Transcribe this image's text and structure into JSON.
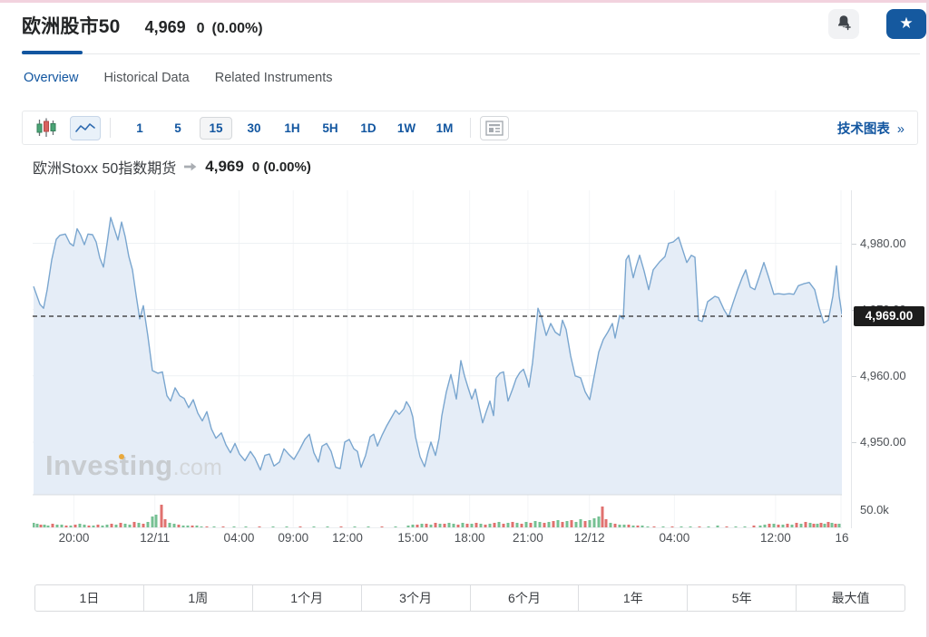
{
  "header": {
    "title": "欧洲股市50",
    "price": "4,969",
    "change": "0",
    "change_pct": "(0.00%)"
  },
  "tabs": [
    {
      "label": "Overview",
      "active": true
    },
    {
      "label": "Historical Data",
      "active": false
    },
    {
      "label": "Related Instruments",
      "active": false
    }
  ],
  "toolbar": {
    "timeframes": [
      "1",
      "5",
      "15",
      "30",
      "1H",
      "5H",
      "1D",
      "1W",
      "1M"
    ],
    "selected_timeframe": "15",
    "tech_chart_label": "技术图表",
    "tech_chart_chevron": "»"
  },
  "chart_header": {
    "name": "欧洲Stoxx 50指数期货",
    "price": "4,969",
    "change": "0 (0.00%)"
  },
  "watermark": {
    "brand": "Investing",
    "suffix": ".com"
  },
  "range_buttons": [
    "1日",
    "1周",
    "1个月",
    "3个月",
    "6个月",
    "1年",
    "5年",
    "最大值"
  ],
  "colors": {
    "accent_blue": "#1256a0",
    "fav_blue": "#15599f",
    "line": "#7aa6cf",
    "fill": "#e5edf7",
    "grid": "#eef1f4",
    "vgrid": "#f3f5f7",
    "vol_green": "#76c093",
    "vol_red": "#e0716f",
    "badge_bg": "#1c1c1c"
  },
  "chart_data": {
    "type": "area",
    "title": "欧洲Stoxx 50指数期货",
    "price_domain": [
      4942.2,
      4988.0
    ],
    "dashed_price": 4969,
    "current_price_label": "4,969.00",
    "y_axis": {
      "ticks": [
        {
          "label": "4,980.00",
          "price": 4980
        },
        {
          "label": "4,970.00",
          "price": 4970
        },
        {
          "label": "4,960.00",
          "price": 4960
        },
        {
          "label": "4,950.00",
          "price": 4950
        }
      ]
    },
    "volume_axis": {
      "label": "50.0k",
      "value": 50000
    },
    "x_ticks": [
      {
        "label": "20:00",
        "f": 0.051
      },
      {
        "label": "12/11",
        "f": 0.151
      },
      {
        "label": "04:00",
        "f": 0.255
      },
      {
        "label": "09:00",
        "f": 0.322
      },
      {
        "label": "12:00",
        "f": 0.389
      },
      {
        "label": "15:00",
        "f": 0.47
      },
      {
        "label": "18:00",
        "f": 0.54
      },
      {
        "label": "21:00",
        "f": 0.612
      },
      {
        "label": "12/12",
        "f": 0.688
      },
      {
        "label": "04:00",
        "f": 0.793
      },
      {
        "label": "12:00",
        "f": 0.918
      },
      {
        "label": "16",
        "f": 1.0
      }
    ],
    "series": [
      [
        1,
        4973.5
      ],
      [
        8,
        4970.8
      ],
      [
        12,
        4970.2
      ],
      [
        16,
        4973.0
      ],
      [
        21,
        4977.5
      ],
      [
        26,
        4980.6
      ],
      [
        30,
        4981.2
      ],
      [
        36,
        4981.4
      ],
      [
        41,
        4980.0
      ],
      [
        45,
        4979.6
      ],
      [
        49,
        4982.2
      ],
      [
        53,
        4981.2
      ],
      [
        57,
        4979.8
      ],
      [
        61,
        4981.4
      ],
      [
        66,
        4981.3
      ],
      [
        70,
        4980.2
      ],
      [
        74,
        4977.8
      ],
      [
        78,
        4976.4
      ],
      [
        82,
        4980.0
      ],
      [
        86,
        4983.9
      ],
      [
        90,
        4982.2
      ],
      [
        94,
        4980.5
      ],
      [
        98,
        4983.2
      ],
      [
        102,
        4981.0
      ],
      [
        106,
        4978.0
      ],
      [
        110,
        4976.0
      ],
      [
        114,
        4972.2
      ],
      [
        118,
        4968.6
      ],
      [
        122,
        4970.6
      ],
      [
        127,
        4966.0
      ],
      [
        132,
        4960.8
      ],
      [
        138,
        4960.4
      ],
      [
        143,
        4960.6
      ],
      [
        148,
        4957.0
      ],
      [
        152,
        4956.2
      ],
      [
        157,
        4958.2
      ],
      [
        162,
        4957.0
      ],
      [
        167,
        4956.6
      ],
      [
        172,
        4955.2
      ],
      [
        177,
        4956.4
      ],
      [
        182,
        4954.4
      ],
      [
        187,
        4953.2
      ],
      [
        192,
        4954.6
      ],
      [
        197,
        4952.0
      ],
      [
        202,
        4950.6
      ],
      [
        208,
        4951.4
      ],
      [
        213,
        4949.6
      ],
      [
        218,
        4948.4
      ],
      [
        223,
        4949.8
      ],
      [
        228,
        4948.2
      ],
      [
        234,
        4947.2
      ],
      [
        240,
        4948.6
      ],
      [
        245,
        4947.6
      ],
      [
        251,
        4945.8
      ],
      [
        256,
        4948.0
      ],
      [
        261,
        4948.2
      ],
      [
        266,
        4946.4
      ],
      [
        272,
        4947.0
      ],
      [
        277,
        4949.0
      ],
      [
        282,
        4948.2
      ],
      [
        288,
        4947.4
      ],
      [
        294,
        4948.8
      ],
      [
        300,
        4950.4
      ],
      [
        305,
        4951.2
      ],
      [
        310,
        4948.4
      ],
      [
        315,
        4947.0
      ],
      [
        319,
        4949.4
      ],
      [
        324,
        4949.8
      ],
      [
        329,
        4948.6
      ],
      [
        334,
        4946.2
      ],
      [
        339,
        4946.0
      ],
      [
        344,
        4950.0
      ],
      [
        349,
        4950.4
      ],
      [
        354,
        4949.0
      ],
      [
        358,
        4948.6
      ],
      [
        362,
        4946.2
      ],
      [
        367,
        4948.0
      ],
      [
        372,
        4950.8
      ],
      [
        376,
        4951.2
      ],
      [
        380,
        4949.4
      ],
      [
        385,
        4951.0
      ],
      [
        390,
        4952.4
      ],
      [
        395,
        4953.6
      ],
      [
        400,
        4954.8
      ],
      [
        404,
        4954.2
      ],
      [
        409,
        4955.0
      ],
      [
        412,
        4956.1
      ],
      [
        416,
        4955.2
      ],
      [
        419,
        4953.8
      ],
      [
        422,
        4950.8
      ],
      [
        427,
        4947.8
      ],
      [
        432,
        4946.3
      ],
      [
        436,
        4948.6
      ],
      [
        439,
        4950.0
      ],
      [
        444,
        4948.0
      ],
      [
        448,
        4950.6
      ],
      [
        451,
        4954.0
      ],
      [
        456,
        4957.6
      ],
      [
        461,
        4960.2
      ],
      [
        464,
        4958.4
      ],
      [
        467,
        4956.5
      ],
      [
        472,
        4962.3
      ],
      [
        476,
        4960.0
      ],
      [
        480,
        4958.2
      ],
      [
        484,
        4956.5
      ],
      [
        488,
        4958.0
      ],
      [
        492,
        4955.4
      ],
      [
        496,
        4952.9
      ],
      [
        500,
        4954.6
      ],
      [
        504,
        4956.2
      ],
      [
        508,
        4954.0
      ],
      [
        511,
        4959.7
      ],
      [
        515,
        4960.4
      ],
      [
        519,
        4960.6
      ],
      [
        524,
        4956.2
      ],
      [
        529,
        4958.0
      ],
      [
        533,
        4959.6
      ],
      [
        537,
        4960.5
      ],
      [
        541,
        4961.0
      ],
      [
        545,
        4959.4
      ],
      [
        547,
        4958.3
      ],
      [
        551,
        4962.0
      ],
      [
        554,
        4966.0
      ],
      [
        557,
        4970.2
      ],
      [
        561,
        4968.8
      ],
      [
        566,
        4966.1
      ],
      [
        571,
        4967.9
      ],
      [
        576,
        4966.6
      ],
      [
        581,
        4966.1
      ],
      [
        584,
        4968.4
      ],
      [
        588,
        4967.0
      ],
      [
        593,
        4963.0
      ],
      [
        598,
        4960.0
      ],
      [
        604,
        4959.7
      ],
      [
        609,
        4957.6
      ],
      [
        614,
        4956.4
      ],
      [
        619,
        4960.0
      ],
      [
        624,
        4963.6
      ],
      [
        629,
        4965.5
      ],
      [
        634,
        4966.6
      ],
      [
        639,
        4967.9
      ],
      [
        642,
        4965.7
      ],
      [
        647,
        4969.1
      ],
      [
        651,
        4968.6
      ],
      [
        654,
        4977.5
      ],
      [
        657,
        4978.2
      ],
      [
        662,
        4974.8
      ],
      [
        665,
        4976.4
      ],
      [
        669,
        4978.2
      ],
      [
        674,
        4975.8
      ],
      [
        679,
        4973.0
      ],
      [
        684,
        4976.0
      ],
      [
        691,
        4977.2
      ],
      [
        697,
        4978.0
      ],
      [
        701,
        4980.0
      ],
      [
        706,
        4980.2
      ],
      [
        712,
        4980.9
      ],
      [
        717,
        4978.8
      ],
      [
        721,
        4977.1
      ],
      [
        726,
        4978.2
      ],
      [
        730,
        4977.9
      ],
      [
        734,
        4968.4
      ],
      [
        738,
        4968.2
      ],
      [
        744,
        4971.2
      ],
      [
        748,
        4971.6
      ],
      [
        752,
        4972.0
      ],
      [
        756,
        4971.8
      ],
      [
        762,
        4970.0
      ],
      [
        767,
        4968.9
      ],
      [
        772,
        4971.0
      ],
      [
        777,
        4973.0
      ],
      [
        782,
        4974.8
      ],
      [
        786,
        4976.0
      ],
      [
        791,
        4973.4
      ],
      [
        796,
        4973.0
      ],
      [
        801,
        4975.0
      ],
      [
        806,
        4977.1
      ],
      [
        811,
        4975.0
      ],
      [
        817,
        4972.3
      ],
      [
        822,
        4972.4
      ],
      [
        828,
        4972.3
      ],
      [
        834,
        4972.4
      ],
      [
        839,
        4972.3
      ],
      [
        844,
        4973.6
      ],
      [
        850,
        4973.9
      ],
      [
        856,
        4974.1
      ],
      [
        862,
        4973.0
      ],
      [
        867,
        4970.2
      ],
      [
        872,
        4968.0
      ],
      [
        877,
        4968.4
      ],
      [
        882,
        4972.0
      ],
      [
        886,
        4976.6
      ],
      [
        889,
        4972.0
      ],
      [
        892,
        4969.3
      ]
    ],
    "volume": [
      [
        1,
        5,
        "g"
      ],
      [
        5,
        4,
        "g"
      ],
      [
        9,
        3,
        "r"
      ],
      [
        13,
        3,
        "g"
      ],
      [
        17,
        2,
        "g"
      ],
      [
        22,
        4,
        "r"
      ],
      [
        27,
        3,
        "g"
      ],
      [
        32,
        3,
        "g"
      ],
      [
        37,
        2,
        "r"
      ],
      [
        42,
        2,
        "g"
      ],
      [
        47,
        3,
        "r"
      ],
      [
        52,
        4,
        "g"
      ],
      [
        57,
        3,
        "g"
      ],
      [
        62,
        2,
        "r"
      ],
      [
        67,
        2,
        "g"
      ],
      [
        72,
        3,
        "r"
      ],
      [
        77,
        2,
        "g"
      ],
      [
        82,
        3,
        "g"
      ],
      [
        87,
        4,
        "r"
      ],
      [
        92,
        3,
        "g"
      ],
      [
        97,
        5,
        "r"
      ],
      [
        102,
        4,
        "g"
      ],
      [
        107,
        3,
        "g"
      ],
      [
        112,
        6,
        "r"
      ],
      [
        117,
        5,
        "g"
      ],
      [
        122,
        4,
        "r"
      ],
      [
        127,
        6,
        "g"
      ],
      [
        132,
        12,
        "g"
      ],
      [
        136,
        14,
        "g"
      ],
      [
        142,
        25,
        "r"
      ],
      [
        146,
        9,
        "r"
      ],
      [
        151,
        5,
        "g"
      ],
      [
        156,
        4,
        "g"
      ],
      [
        161,
        3,
        "r"
      ],
      [
        166,
        2,
        "g"
      ],
      [
        171,
        2,
        "g"
      ],
      [
        176,
        2,
        "r"
      ],
      [
        181,
        2,
        "g"
      ],
      [
        186,
        1,
        "g"
      ],
      [
        192,
        1,
        "r"
      ],
      [
        200,
        1,
        "g"
      ],
      [
        210,
        1,
        "r"
      ],
      [
        222,
        1,
        "g"
      ],
      [
        235,
        1,
        "g"
      ],
      [
        250,
        1,
        "r"
      ],
      [
        265,
        1,
        "g"
      ],
      [
        280,
        1,
        "g"
      ],
      [
        295,
        1,
        "r"
      ],
      [
        310,
        1,
        "g"
      ],
      [
        325,
        1,
        "g"
      ],
      [
        340,
        1,
        "r"
      ],
      [
        355,
        1,
        "g"
      ],
      [
        370,
        1,
        "g"
      ],
      [
        385,
        1,
        "r"
      ],
      [
        400,
        1,
        "g"
      ],
      [
        414,
        2,
        "g"
      ],
      [
        419,
        3,
        "g"
      ],
      [
        424,
        3,
        "r"
      ],
      [
        429,
        4,
        "g"
      ],
      [
        434,
        4,
        "r"
      ],
      [
        439,
        3,
        "g"
      ],
      [
        444,
        5,
        "r"
      ],
      [
        449,
        4,
        "g"
      ],
      [
        454,
        4,
        "r"
      ],
      [
        459,
        5,
        "g"
      ],
      [
        464,
        4,
        "g"
      ],
      [
        469,
        3,
        "r"
      ],
      [
        474,
        5,
        "g"
      ],
      [
        479,
        4,
        "r"
      ],
      [
        484,
        4,
        "g"
      ],
      [
        489,
        5,
        "r"
      ],
      [
        494,
        4,
        "g"
      ],
      [
        499,
        3,
        "r"
      ],
      [
        504,
        4,
        "g"
      ],
      [
        509,
        5,
        "r"
      ],
      [
        514,
        6,
        "g"
      ],
      [
        519,
        4,
        "r"
      ],
      [
        524,
        5,
        "g"
      ],
      [
        529,
        6,
        "r"
      ],
      [
        534,
        5,
        "g"
      ],
      [
        539,
        4,
        "r"
      ],
      [
        544,
        6,
        "g"
      ],
      [
        549,
        5,
        "r"
      ],
      [
        554,
        7,
        "g"
      ],
      [
        559,
        6,
        "g"
      ],
      [
        564,
        5,
        "r"
      ],
      [
        569,
        6,
        "g"
      ],
      [
        574,
        7,
        "r"
      ],
      [
        579,
        8,
        "g"
      ],
      [
        584,
        6,
        "r"
      ],
      [
        589,
        7,
        "g"
      ],
      [
        594,
        8,
        "r"
      ],
      [
        599,
        6,
        "g"
      ],
      [
        604,
        9,
        "g"
      ],
      [
        609,
        7,
        "r"
      ],
      [
        614,
        8,
        "g"
      ],
      [
        619,
        10,
        "g"
      ],
      [
        624,
        12,
        "g"
      ],
      [
        628,
        23,
        "r"
      ],
      [
        632,
        9,
        "r"
      ],
      [
        637,
        5,
        "g"
      ],
      [
        642,
        4,
        "r"
      ],
      [
        647,
        3,
        "g"
      ],
      [
        652,
        3,
        "g"
      ],
      [
        657,
        3,
        "r"
      ],
      [
        662,
        2,
        "g"
      ],
      [
        667,
        2,
        "r"
      ],
      [
        672,
        2,
        "g"
      ],
      [
        678,
        1,
        "g"
      ],
      [
        685,
        1,
        "r"
      ],
      [
        695,
        1,
        "g"
      ],
      [
        705,
        1,
        "r"
      ],
      [
        715,
        1,
        "g"
      ],
      [
        725,
        1,
        "g"
      ],
      [
        735,
        1,
        "r"
      ],
      [
        745,
        1,
        "g"
      ],
      [
        755,
        2,
        "g"
      ],
      [
        765,
        1,
        "r"
      ],
      [
        775,
        1,
        "g"
      ],
      [
        785,
        1,
        "g"
      ],
      [
        795,
        2,
        "r"
      ],
      [
        802,
        2,
        "g"
      ],
      [
        807,
        3,
        "g"
      ],
      [
        812,
        4,
        "r"
      ],
      [
        817,
        4,
        "g"
      ],
      [
        822,
        3,
        "r"
      ],
      [
        827,
        3,
        "g"
      ],
      [
        832,
        4,
        "r"
      ],
      [
        837,
        3,
        "g"
      ],
      [
        842,
        5,
        "r"
      ],
      [
        847,
        4,
        "g"
      ],
      [
        852,
        6,
        "r"
      ],
      [
        857,
        5,
        "g"
      ],
      [
        861,
        4,
        "r"
      ],
      [
        865,
        4,
        "g"
      ],
      [
        869,
        5,
        "r"
      ],
      [
        873,
        4,
        "g"
      ],
      [
        877,
        6,
        "r"
      ],
      [
        881,
        5,
        "g"
      ],
      [
        885,
        4,
        "r"
      ],
      [
        889,
        4,
        "g"
      ]
    ]
  }
}
